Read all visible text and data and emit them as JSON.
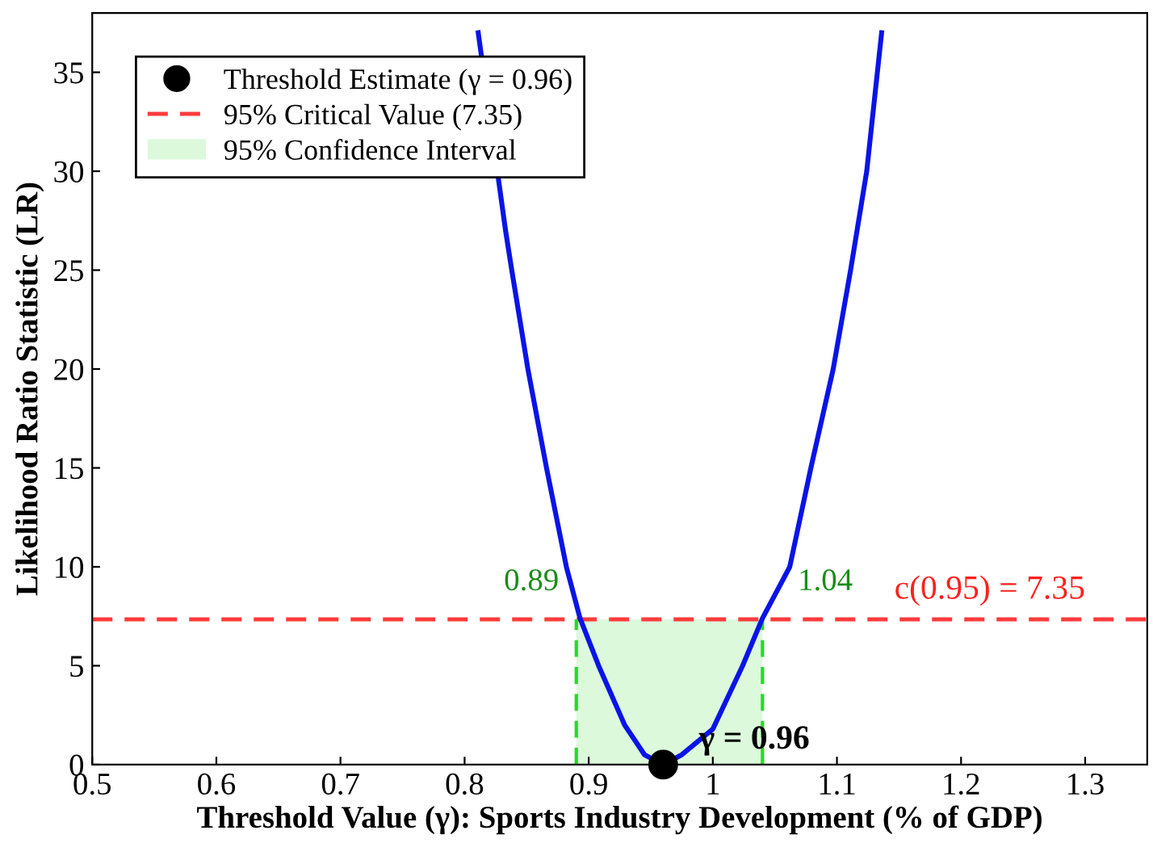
{
  "chart_data": {
    "type": "line",
    "xlabel": "Threshold Value (γ): Sports Industry Development (% of GDP)",
    "ylabel": "Likelihood Ratio Statistic (LR)",
    "series": [
      {
        "color": "#0a14e6",
        "x": [
          0.811,
          0.833,
          0.838,
          0.851,
          0.866,
          0.882,
          0.893,
          0.908,
          0.929,
          0.945,
          0.96,
          0.975,
          1.0,
          1.024,
          1.04,
          1.062,
          1.079,
          1.097,
          1.111,
          1.124,
          1.136
        ],
        "values": [
          37,
          27,
          25,
          20,
          15,
          10,
          7.4,
          5,
          2,
          0.5,
          0,
          0.5,
          1.8,
          5,
          7.4,
          10,
          15,
          20,
          25,
          30,
          37
        ]
      },
      {
        "type": "scatter",
        "name": "Threshold Estimate (γ = 0.96)",
        "color": "#000000",
        "x": [
          0.96
        ],
        "values": [
          0
        ],
        "marker": "circle"
      }
    ],
    "ref_lines": [
      {
        "axis": "y",
        "value": 7.35,
        "label": "95% Critical Value (7.35)",
        "color": "#ff3b3b",
        "line_style": "dashed"
      },
      {
        "axis": "x",
        "value": 0.89,
        "label": "0.89",
        "color": "#22dd22",
        "line_style": "dashed"
      },
      {
        "axis": "x",
        "value": 1.04,
        "label": "1.04",
        "color": "#22dd22",
        "line_style": "dashed"
      }
    ],
    "bands": [
      {
        "axis": "x",
        "from": 0.89,
        "to": 1.04,
        "label": "95% Confidence Interval",
        "color": "#dcf9dc"
      }
    ],
    "annotations": [
      {
        "text": "c(0.95) = 7.35",
        "x": 1.3,
        "y": 7.35
      },
      {
        "text": "γ = 0.96",
        "x": 0.96,
        "y": 0
      }
    ],
    "xlim": [
      0.5,
      1.35
    ],
    "ylim": [
      0,
      38
    ],
    "xticks": [
      0.5,
      0.6,
      0.7,
      0.8,
      0.9,
      1,
      1.1,
      1.2,
      1.3
    ],
    "yticks": [
      0,
      5,
      10,
      15,
      20,
      25,
      30,
      35
    ],
    "grid": false,
    "legend": "top left"
  }
}
